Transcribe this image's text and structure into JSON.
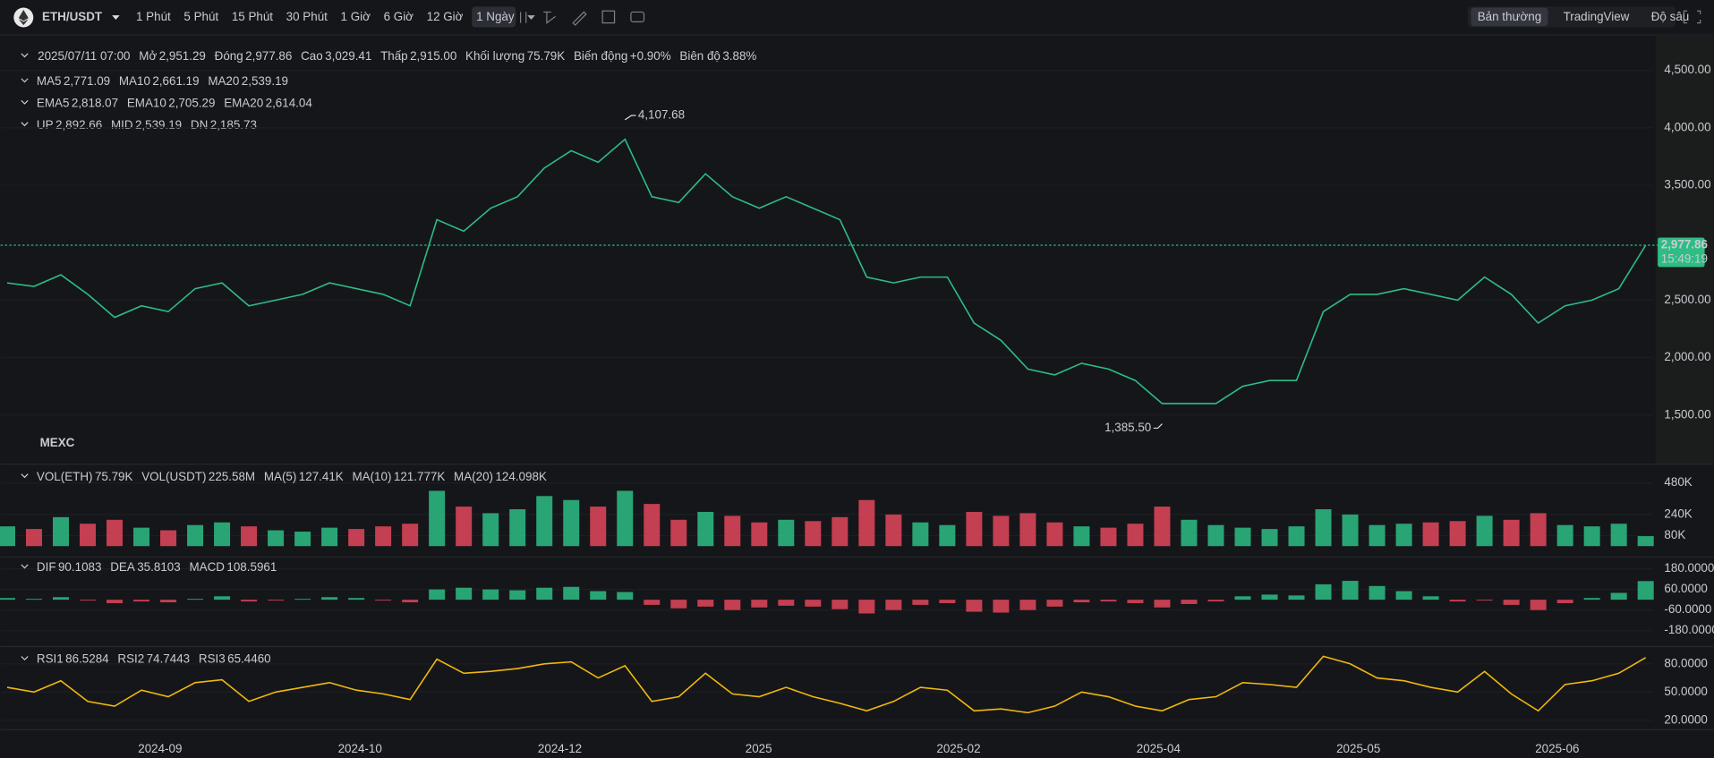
{
  "toolbar": {
    "symbol": "ETH/USDT",
    "intervals": [
      {
        "label": "1 Phút"
      },
      {
        "label": "5 Phút"
      },
      {
        "label": "15 Phút"
      },
      {
        "label": "30 Phút"
      },
      {
        "label": "1 Giờ"
      },
      {
        "label": "6 Giờ"
      },
      {
        "label": "12 Giờ"
      },
      {
        "label": "1 Ngày",
        "active": true
      }
    ],
    "views": [
      {
        "label": "Bản thường",
        "active": true
      },
      {
        "label": "TradingView"
      },
      {
        "label": "Độ sâu"
      }
    ]
  },
  "legend": {
    "date": "2025/07/11 07:00",
    "value_color": "#2dbd85",
    "fields": [
      {
        "label": "Mở",
        "value": "2,951.29"
      },
      {
        "label": "Đóng",
        "value": "2,977.86"
      },
      {
        "label": "Cao",
        "value": "3,029.41"
      },
      {
        "label": "Thấp",
        "value": "2,915.00"
      },
      {
        "label": "Khối lượng",
        "value": "75.79K"
      },
      {
        "label": "Biến động",
        "value": "+0.90%"
      },
      {
        "label": "Biên độ",
        "value": "3.88%"
      }
    ]
  },
  "indicators": [
    {
      "items": [
        {
          "label": "MA5",
          "value": "2,771.09",
          "color": "#f0b90b"
        },
        {
          "label": "MA10",
          "value": "2,661.19",
          "color": "#a06cf5"
        },
        {
          "label": "MA20",
          "value": "2,539.19",
          "color": "#c2e07c"
        }
      ]
    },
    {
      "items": [
        {
          "label": "EMA5",
          "value": "2,818.07",
          "color": "#f0b90b"
        },
        {
          "label": "EMA10",
          "value": "2,705.29",
          "color": "#a06cf5"
        },
        {
          "label": "EMA20",
          "value": "2,614.04",
          "color": "#c2e07c"
        }
      ]
    },
    {
      "items": [
        {
          "label": "UP",
          "value": "2,892.66",
          "color": "#f0b90b"
        },
        {
          "label": "MID",
          "value": "2,539.19",
          "color": "#a06cf5"
        },
        {
          "label": "DN",
          "value": "2,185.73",
          "color": "#c2e07c"
        }
      ]
    }
  ],
  "watermark": "MEXC",
  "price_chart": {
    "type": "line",
    "color": "#2dbd85",
    "ylim": [
      1072,
      4808
    ],
    "yticks": [
      {
        "value": 4500,
        "label": "4,500.00"
      },
      {
        "value": 4000,
        "label": "4,000.00"
      },
      {
        "value": 3500,
        "label": "3,500.00"
      },
      {
        "value": 2500,
        "label": "2,500.00"
      },
      {
        "value": 2000,
        "label": "2,000.00"
      },
      {
        "value": 1500,
        "label": "1,500.00"
      }
    ],
    "values": [
      2650,
      2620,
      2720,
      2550,
      2350,
      2450,
      2400,
      2600,
      2650,
      2450,
      2500,
      2550,
      2650,
      2600,
      2550,
      2450,
      3200,
      3100,
      3300,
      3400,
      3650,
      3800,
      3700,
      3900,
      3400,
      3350,
      3600,
      3400,
      3300,
      3400,
      3300,
      3200,
      2700,
      2650,
      2700,
      2700,
      2300,
      2150,
      1900,
      1850,
      1950,
      1900,
      1800,
      1600,
      1600,
      1600,
      1750,
      1800,
      1800,
      2400,
      2550,
      2550,
      2600,
      2550,
      2500,
      2700,
      2550,
      2300,
      2450,
      2500,
      2600,
      2977.86
    ],
    "last_price": {
      "value": 2977.86,
      "label": "2,977.86"
    },
    "countdown": "15:49:19",
    "high_marker": {
      "value": 4107.68,
      "label": "4,107.68"
    },
    "low_marker": {
      "value": 1385.5,
      "label": "1,385.50"
    }
  },
  "volume_chart": {
    "type": "bar",
    "up_color": "#2dbd85",
    "down_color": "#e2465c",
    "ylim": [
      0,
      622
    ],
    "yticks": [
      {
        "value": 480,
        "label": "480K"
      },
      {
        "value": 240,
        "label": "240K"
      },
      {
        "value": 80,
        "label": "80K"
      }
    ],
    "legend": [
      {
        "label": "VOL(ETH)",
        "value": "75.79K",
        "color": "#2dbd85"
      },
      {
        "label": "VOL(USDT)",
        "value": "225.58M",
        "color": "#2dbd85"
      },
      {
        "label": "MA(5)",
        "value": "127.41K",
        "color": "#f0b90b"
      },
      {
        "label": "MA(10)",
        "value": "121.777K",
        "color": "#a06cf5"
      },
      {
        "label": "MA(20)",
        "value": "124.098K",
        "color": "#c2e07c"
      }
    ],
    "values": [
      150,
      130,
      220,
      170,
      200,
      140,
      120,
      160,
      180,
      150,
      120,
      110,
      140,
      130,
      150,
      170,
      420,
      300,
      250,
      280,
      380,
      350,
      300,
      420,
      320,
      200,
      260,
      230,
      180,
      200,
      190,
      220,
      350,
      240,
      180,
      160,
      260,
      230,
      250,
      180,
      150,
      140,
      170,
      300,
      200,
      160,
      140,
      130,
      150,
      280,
      240,
      160,
      170,
      180,
      190,
      230,
      200,
      250,
      160,
      150,
      170,
      75.79
    ]
  },
  "macd_chart": {
    "type": "bar",
    "up_color": "#2dbd85",
    "down_color": "#e2465c",
    "ylim": [
      -273,
      236
    ],
    "yticks": [
      {
        "value": 180,
        "label": "180.0000"
      },
      {
        "value": 60,
        "label": "60.0000"
      },
      {
        "value": -60,
        "label": "-60.0000"
      },
      {
        "value": -180,
        "label": "-180.0000"
      }
    ],
    "legend": [
      {
        "label": "DIF",
        "value": "90.1083",
        "color": "#f0b90b"
      },
      {
        "label": "DEA",
        "value": "35.8103",
        "color": "#a06cf5"
      },
      {
        "label": "MACD",
        "value": "108.5961",
        "color": "#a06cf5"
      }
    ],
    "values": [
      10,
      5,
      15,
      -5,
      -20,
      -10,
      -15,
      5,
      20,
      -10,
      -5,
      5,
      15,
      10,
      -5,
      -15,
      60,
      70,
      60,
      55,
      70,
      75,
      50,
      45,
      -30,
      -50,
      -40,
      -60,
      -45,
      -35,
      -40,
      -55,
      -80,
      -60,
      -30,
      -20,
      -70,
      -75,
      -60,
      -40,
      -15,
      -10,
      -20,
      -45,
      -25,
      -10,
      20,
      30,
      25,
      90,
      110,
      80,
      50,
      20,
      -10,
      -5,
      -30,
      -60,
      -20,
      10,
      40,
      108.5961
    ]
  },
  "rsi_chart": {
    "type": "line",
    "color": "#f0b90b",
    "ylim": [
      10,
      96
    ],
    "yticks": [
      {
        "value": 80,
        "label": "80.0000"
      },
      {
        "value": 50,
        "label": "50.0000"
      },
      {
        "value": 20,
        "label": "20.0000"
      }
    ],
    "legend": [
      {
        "label": "RSI1",
        "value": "86.5284",
        "color": "#f0b90b"
      },
      {
        "label": "RSI2",
        "value": "74.7443",
        "color": "#a06cf5"
      },
      {
        "label": "RSI3",
        "value": "65.4460",
        "color": "#c2e07c"
      }
    ],
    "values": [
      55,
      50,
      62,
      40,
      35,
      52,
      45,
      60,
      63,
      40,
      50,
      55,
      60,
      52,
      48,
      42,
      85,
      70,
      72,
      75,
      80,
      82,
      65,
      78,
      40,
      45,
      70,
      48,
      45,
      55,
      45,
      38,
      30,
      40,
      55,
      52,
      30,
      32,
      28,
      35,
      50,
      45,
      35,
      30,
      42,
      45,
      60,
      58,
      55,
      88,
      80,
      65,
      62,
      55,
      50,
      72,
      48,
      30,
      58,
      62,
      70,
      86.5284
    ]
  },
  "time_axis": [
    "2024-09",
    "2024-10",
    "2024-12",
    "2025",
    "2025-02",
    "2025-04",
    "2025-05",
    "2025-06"
  ]
}
